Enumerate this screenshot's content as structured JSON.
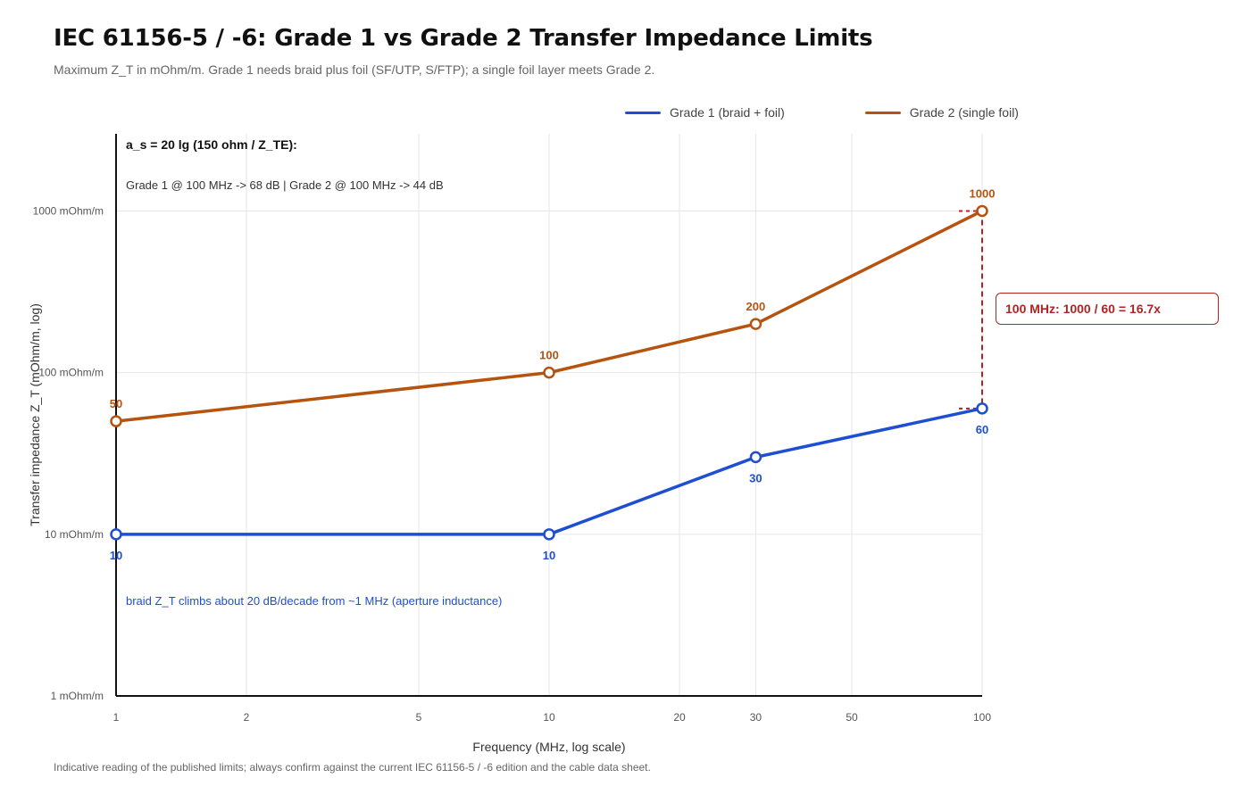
{
  "title": "IEC 61156-5 / -6: Grade 1 vs Grade 2 Transfer Impedance Limits",
  "subtitle": "Maximum Z_T in mOhm/m. Grade 1 needs braid plus foil (SF/UTP, S/FTP); a single foil layer meets Grade 2.",
  "footnote": "Indicative reading of the published limits; always confirm against the current IEC 61156-5 / -6 edition and the cable data sheet.",
  "annotations": {
    "shield_formula": "a_s = 20 lg (150 ohm / Z_TE):",
    "shield_values": "Grade 1 @ 100 MHz -> 68 dB | Grade 2 @ 100 MHz -> 44 dB",
    "braid_note": "braid Z_T climbs about 20 dB/decade from ~1 MHz (aperture inductance)",
    "ratio_label": "100 MHz: 1000 / 60 = 16.7x"
  },
  "colors": {
    "grade1": "#1f4fd1",
    "grade2": "#b5530f",
    "ratio": "#b02424",
    "grid": "#e6e6e6",
    "axis": "#111111"
  },
  "chart_data": {
    "type": "line",
    "title": "IEC 61156-5 / -6: Grade 1 vs Grade 2 Transfer Impedance Limits",
    "xlabel": "Frequency (MHz, log scale)",
    "ylabel": "Transfer impedance Z_T (mOhm/m, log)",
    "x_scale": "log",
    "y_scale": "log",
    "xlim": [
      1,
      100
    ],
    "ylim": [
      1,
      3000
    ],
    "x_ticks": [
      1,
      2,
      5,
      10,
      20,
      30,
      50,
      100
    ],
    "x_tick_labels": [
      "1",
      "2",
      "5",
      "10",
      "20",
      "30",
      "50",
      "100"
    ],
    "y_ticks": [
      1,
      10,
      100,
      1000
    ],
    "y_tick_labels": [
      "1 mOhm/m",
      "10 mOhm/m",
      "100 mOhm/m",
      "1000 mOhm/m"
    ],
    "grid": true,
    "legend_position": "top-right",
    "series": [
      {
        "name": "Grade 1 (braid + foil)",
        "x": [
          1,
          10,
          30,
          100
        ],
        "y": [
          10,
          10,
          30,
          60
        ],
        "labels": [
          "10",
          "10",
          "30",
          "60"
        ],
        "label_position": "below"
      },
      {
        "name": "Grade 2 (single foil)",
        "x": [
          1,
          10,
          30,
          100
        ],
        "y": [
          50,
          100,
          200,
          1000
        ],
        "labels": [
          "50",
          "100",
          "200",
          "1000"
        ],
        "label_position": "above"
      }
    ]
  }
}
